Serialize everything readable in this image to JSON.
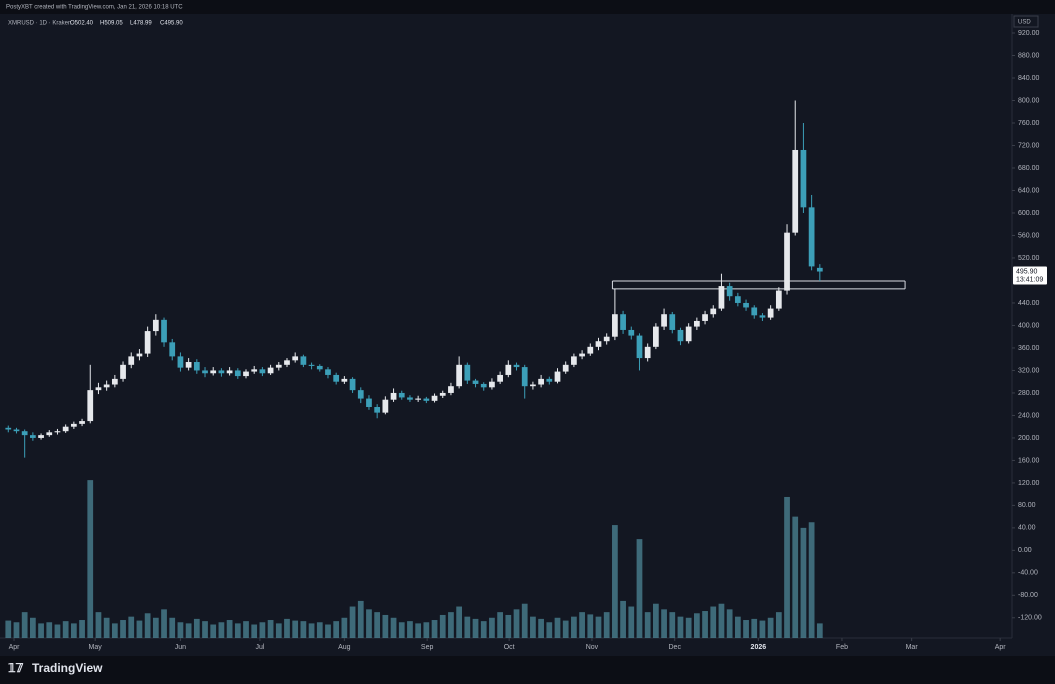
{
  "header": {
    "credit": "PostyXBT created with TradingView.com, Jan 21, 2026 10:18 UTC"
  },
  "chart_data": {
    "type": "candlestick",
    "symbol": "XMRUSD · 1D · Kraken",
    "ohlc_labels": [
      "O502.40",
      "H509.05",
      "L478.99",
      "C495.90"
    ],
    "currency": "USD",
    "last_price_label": "495.90",
    "countdown": "13:41:09",
    "brand": "TradingView",
    "up_color": "#e6e8ec",
    "down_color": "#3c9fb8",
    "volume_color": "#4d8797",
    "ohlc": [
      [
        218,
        222,
        210,
        215
      ],
      [
        215,
        218,
        208,
        212
      ],
      [
        212,
        215,
        165,
        205
      ],
      [
        205,
        210,
        195,
        200
      ],
      [
        200,
        208,
        197,
        205
      ],
      [
        205,
        214,
        202,
        210
      ],
      [
        210,
        216,
        206,
        212
      ],
      [
        212,
        224,
        209,
        220
      ],
      [
        220,
        229,
        216,
        225
      ],
      [
        225,
        234,
        221,
        230
      ],
      [
        230,
        330,
        226,
        285
      ],
      [
        285,
        298,
        278,
        290
      ],
      [
        290,
        302,
        284,
        295
      ],
      [
        295,
        312,
        290,
        305
      ],
      [
        305,
        336,
        300,
        330
      ],
      [
        330,
        352,
        324,
        345
      ],
      [
        345,
        358,
        338,
        350
      ],
      [
        350,
        398,
        344,
        390
      ],
      [
        390,
        420,
        382,
        410
      ],
      [
        410,
        414,
        362,
        370
      ],
      [
        370,
        376,
        338,
        345
      ],
      [
        345,
        352,
        318,
        325
      ],
      [
        325,
        342,
        320,
        335
      ],
      [
        335,
        340,
        314,
        320
      ],
      [
        320,
        326,
        308,
        315
      ],
      [
        315,
        326,
        311,
        320
      ],
      [
        320,
        324,
        309,
        315
      ],
      [
        315,
        326,
        311,
        320
      ],
      [
        320,
        324,
        305,
        310
      ],
      [
        310,
        322,
        306,
        318
      ],
      [
        318,
        328,
        314,
        322
      ],
      [
        322,
        326,
        310,
        315
      ],
      [
        315,
        330,
        312,
        325
      ],
      [
        325,
        335,
        320,
        330
      ],
      [
        330,
        342,
        326,
        338
      ],
      [
        338,
        352,
        334,
        345
      ],
      [
        345,
        348,
        326,
        330
      ],
      [
        330,
        334,
        322,
        328
      ],
      [
        328,
        331,
        318,
        322
      ],
      [
        322,
        326,
        306,
        312
      ],
      [
        312,
        316,
        295,
        300
      ],
      [
        300,
        310,
        296,
        305
      ],
      [
        305,
        308,
        280,
        285
      ],
      [
        285,
        290,
        262,
        270
      ],
      [
        270,
        276,
        250,
        255
      ],
      [
        255,
        260,
        235,
        245
      ],
      [
        245,
        274,
        242,
        268
      ],
      [
        268,
        288,
        264,
        280
      ],
      [
        280,
        284,
        268,
        272
      ],
      [
        272,
        276,
        264,
        268
      ],
      [
        268,
        275,
        264,
        270
      ],
      [
        270,
        273,
        262,
        266
      ],
      [
        266,
        279,
        263,
        275
      ],
      [
        275,
        284,
        271,
        280
      ],
      [
        280,
        298,
        276,
        292
      ],
      [
        292,
        345,
        288,
        330
      ],
      [
        330,
        334,
        296,
        302
      ],
      [
        302,
        305,
        290,
        296
      ],
      [
        296,
        299,
        284,
        290
      ],
      [
        290,
        306,
        286,
        300
      ],
      [
        300,
        318,
        296,
        312
      ],
      [
        312,
        338,
        308,
        330
      ],
      [
        330,
        334,
        320,
        326
      ],
      [
        326,
        330,
        270,
        292
      ],
      [
        292,
        300,
        286,
        295
      ],
      [
        295,
        312,
        290,
        305
      ],
      [
        305,
        309,
        295,
        300
      ],
      [
        300,
        324,
        297,
        318
      ],
      [
        318,
        336,
        314,
        330
      ],
      [
        330,
        350,
        326,
        345
      ],
      [
        345,
        356,
        340,
        350
      ],
      [
        350,
        368,
        346,
        362
      ],
      [
        362,
        378,
        356,
        372
      ],
      [
        372,
        386,
        366,
        380
      ],
      [
        380,
        465,
        374,
        420
      ],
      [
        420,
        426,
        385,
        392
      ],
      [
        392,
        398,
        375,
        382
      ],
      [
        382,
        386,
        320,
        342
      ],
      [
        342,
        368,
        336,
        362
      ],
      [
        362,
        404,
        358,
        398
      ],
      [
        398,
        430,
        392,
        420
      ],
      [
        420,
        424,
        386,
        392
      ],
      [
        392,
        396,
        365,
        372
      ],
      [
        372,
        404,
        368,
        398
      ],
      [
        398,
        414,
        392,
        408
      ],
      [
        408,
        426,
        402,
        420
      ],
      [
        420,
        436,
        414,
        430
      ],
      [
        430,
        492,
        426,
        470
      ],
      [
        470,
        476,
        444,
        452
      ],
      [
        452,
        458,
        434,
        440
      ],
      [
        440,
        446,
        426,
        432
      ],
      [
        432,
        436,
        412,
        418
      ],
      [
        418,
        422,
        408,
        414
      ],
      [
        414,
        436,
        410,
        430
      ],
      [
        430,
        468,
        426,
        462
      ],
      [
        462,
        580,
        455,
        565
      ],
      [
        565,
        800,
        560,
        712
      ],
      [
        712,
        760,
        600,
        610
      ],
      [
        610,
        632,
        498,
        505
      ],
      [
        502.4,
        509.05,
        478.99,
        495.9
      ]
    ],
    "volume": [
      -125,
      -128,
      -110,
      -120,
      -130,
      -128,
      -132,
      -126,
      -130,
      -124,
      125,
      -110,
      -120,
      -130,
      -124,
      -118,
      -125,
      -112,
      -120,
      -105,
      -120,
      -128,
      -130,
      -122,
      -126,
      -132,
      -128,
      -124,
      -130,
      -126,
      -132,
      -128,
      -124,
      -130,
      -122,
      -125,
      -126,
      -130,
      -128,
      -132,
      -126,
      -120,
      -100,
      -90,
      -105,
      -110,
      -115,
      -120,
      -128,
      -126,
      -130,
      -128,
      -124,
      -115,
      -110,
      -100,
      -118,
      -122,
      -126,
      -120,
      -110,
      -115,
      -105,
      -95,
      -118,
      -122,
      -128,
      -120,
      -125,
      -118,
      -110,
      -114,
      -118,
      -110,
      45,
      -90,
      -100,
      20,
      -110,
      -95,
      -105,
      -110,
      -118,
      -120,
      -112,
      -108,
      -100,
      -95,
      -105,
      -118,
      -124,
      -122,
      -125,
      -120,
      -110,
      95,
      60,
      40,
      50,
      -130
    ],
    "xlim": [
      -0.4,
      122.2
    ],
    "xticks": [
      {
        "value": 0.7,
        "label": "Apr"
      },
      {
        "value": 10.6,
        "label": "May"
      },
      {
        "value": 21,
        "label": "Jun"
      },
      {
        "value": 30.7,
        "label": "Jul"
      },
      {
        "value": 41,
        "label": "Aug"
      },
      {
        "value": 51.1,
        "label": "Sep"
      },
      {
        "value": 61.1,
        "label": "Oct"
      },
      {
        "value": 71.2,
        "label": "Nov"
      },
      {
        "value": 81.3,
        "label": "Dec"
      },
      {
        "value": 91.5,
        "label": "2026"
      },
      {
        "value": 101.7,
        "label": "Feb"
      },
      {
        "value": 110.2,
        "label": "Mar"
      },
      {
        "value": 121,
        "label": "Apr"
      }
    ],
    "ylim": [
      143,
      952
    ],
    "yticks": [
      {
        "value": 160,
        "label": "160.00"
      },
      {
        "value": 200,
        "label": "200.00"
      },
      {
        "value": 240,
        "label": "240.00"
      },
      {
        "value": 280,
        "label": "280.00"
      },
      {
        "value": 320,
        "label": "320.00"
      },
      {
        "value": 360,
        "label": "360.00"
      },
      {
        "value": 400,
        "label": "400.00"
      },
      {
        "value": 440,
        "label": "440.00"
      },
      {
        "value": 520,
        "label": "520.00"
      },
      {
        "value": 560,
        "label": "560.00"
      },
      {
        "value": 600,
        "label": "600.00"
      },
      {
        "value": 640,
        "label": "640.00"
      },
      {
        "value": 680,
        "label": "680.00"
      },
      {
        "value": 720,
        "label": "720.00"
      },
      {
        "value": 760,
        "label": "760.00"
      },
      {
        "value": 800,
        "label": "800.00"
      },
      {
        "value": 840,
        "label": "840.00"
      },
      {
        "value": 880,
        "label": "880.00"
      },
      {
        "value": 920,
        "label": "920.00"
      }
    ],
    "y2lim": [
      -156,
      143
    ],
    "y2ticks": [
      {
        "value": 120,
        "label": "120.00"
      },
      {
        "value": 80,
        "label": "80.00"
      },
      {
        "value": 40,
        "label": "40.00"
      },
      {
        "value": 0,
        "label": "0.00"
      },
      {
        "value": -40,
        "label": "-40.00"
      },
      {
        "value": -80,
        "label": "-80.00"
      },
      {
        "value": -120,
        "label": "-120.00"
      }
    ],
    "zone_x": [
      73.7,
      109.4
    ],
    "zone_levels": [
      479,
      465
    ]
  }
}
